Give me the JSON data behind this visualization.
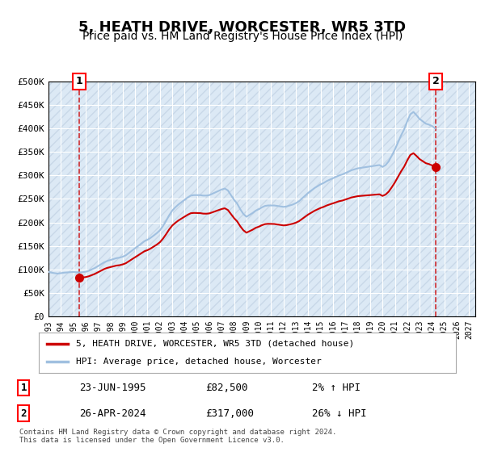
{
  "title": "5, HEATH DRIVE, WORCESTER, WR5 3TD",
  "subtitle": "Price paid vs. HM Land Registry's House Price Index (HPI)",
  "title_fontsize": 13,
  "subtitle_fontsize": 10,
  "xmin": 1993.0,
  "xmax": 2027.5,
  "ymin": 0,
  "ymax": 500000,
  "yticks": [
    0,
    50000,
    100000,
    150000,
    200000,
    250000,
    300000,
    350000,
    400000,
    450000,
    500000
  ],
  "ytick_labels": [
    "£0",
    "£50K",
    "£100K",
    "£150K",
    "£200K",
    "£250K",
    "£300K",
    "£350K",
    "£400K",
    "£450K",
    "£500K"
  ],
  "background_color": "#ffffff",
  "plot_bg_color": "#dce9f5",
  "grid_color": "#ffffff",
  "hatch_color": "#c8d8e8",
  "hpi_color": "#a0c0e0",
  "price_color": "#cc0000",
  "point1_x": 1995.48,
  "point1_y": 82500,
  "point2_x": 2024.32,
  "point2_y": 317000,
  "legend_label1": "5, HEATH DRIVE, WORCESTER, WR5 3TD (detached house)",
  "legend_label2": "HPI: Average price, detached house, Worcester",
  "annotation1_label": "1",
  "annotation2_label": "2",
  "table_row1": [
    "1",
    "23-JUN-1995",
    "£82,500",
    "2% ↑ HPI"
  ],
  "table_row2": [
    "2",
    "26-APR-2024",
    "£317,000",
    "26% ↓ HPI"
  ],
  "footer": "Contains HM Land Registry data © Crown copyright and database right 2024.\nThis data is licensed under the Open Government Licence v3.0.",
  "hpi_data_x": [
    1993.0,
    1993.25,
    1993.5,
    1993.75,
    1994.0,
    1994.25,
    1994.5,
    1994.75,
    1995.0,
    1995.25,
    1995.5,
    1995.75,
    1996.0,
    1996.25,
    1996.5,
    1996.75,
    1997.0,
    1997.25,
    1997.5,
    1997.75,
    1998.0,
    1998.25,
    1998.5,
    1998.75,
    1999.0,
    1999.25,
    1999.5,
    1999.75,
    2000.0,
    2000.25,
    2000.5,
    2000.75,
    2001.0,
    2001.25,
    2001.5,
    2001.75,
    2002.0,
    2002.25,
    2002.5,
    2002.75,
    2003.0,
    2003.25,
    2003.5,
    2003.75,
    2004.0,
    2004.25,
    2004.5,
    2004.75,
    2005.0,
    2005.25,
    2005.5,
    2005.75,
    2006.0,
    2006.25,
    2006.5,
    2006.75,
    2007.0,
    2007.25,
    2007.5,
    2007.75,
    2008.0,
    2008.25,
    2008.5,
    2008.75,
    2009.0,
    2009.25,
    2009.5,
    2009.75,
    2010.0,
    2010.25,
    2010.5,
    2010.75,
    2011.0,
    2011.25,
    2011.5,
    2011.75,
    2012.0,
    2012.25,
    2012.5,
    2012.75,
    2013.0,
    2013.25,
    2013.5,
    2013.75,
    2014.0,
    2014.25,
    2014.5,
    2014.75,
    2015.0,
    2015.25,
    2015.5,
    2015.75,
    2016.0,
    2016.25,
    2016.5,
    2016.75,
    2017.0,
    2017.25,
    2017.5,
    2017.75,
    2018.0,
    2018.25,
    2018.5,
    2018.75,
    2019.0,
    2019.25,
    2019.5,
    2019.75,
    2020.0,
    2020.25,
    2020.5,
    2020.75,
    2021.0,
    2021.25,
    2021.5,
    2021.75,
    2022.0,
    2022.25,
    2022.5,
    2022.75,
    2023.0,
    2023.25,
    2023.5,
    2023.75,
    2024.0,
    2024.25
  ],
  "hpi_data_y": [
    95000,
    93000,
    92000,
    91000,
    92000,
    93000,
    93500,
    94000,
    94500,
    94000,
    93500,
    94000,
    95000,
    97000,
    100000,
    103000,
    107000,
    111000,
    115000,
    118000,
    120000,
    122000,
    124000,
    125000,
    127000,
    130000,
    135000,
    140000,
    145000,
    150000,
    155000,
    160000,
    163000,
    167000,
    172000,
    177000,
    183000,
    192000,
    203000,
    215000,
    225000,
    232000,
    238000,
    243000,
    248000,
    253000,
    257000,
    258000,
    258000,
    258000,
    257000,
    257000,
    258000,
    261000,
    264000,
    267000,
    270000,
    272000,
    268000,
    258000,
    248000,
    240000,
    228000,
    218000,
    212000,
    216000,
    220000,
    225000,
    228000,
    232000,
    235000,
    236000,
    236000,
    236000,
    235000,
    234000,
    233000,
    234000,
    236000,
    238000,
    241000,
    245000,
    251000,
    257000,
    263000,
    268000,
    273000,
    277000,
    281000,
    284000,
    288000,
    291000,
    294000,
    297000,
    300000,
    302000,
    305000,
    308000,
    311000,
    313000,
    315000,
    316000,
    317000,
    318000,
    319000,
    320000,
    321000,
    322000,
    318000,
    322000,
    330000,
    342000,
    355000,
    370000,
    385000,
    398000,
    415000,
    430000,
    435000,
    428000,
    420000,
    415000,
    410000,
    408000,
    405000,
    400000
  ],
  "price_data_x": [
    1995.48,
    2024.32
  ],
  "price_data_y": [
    82500,
    317000
  ]
}
